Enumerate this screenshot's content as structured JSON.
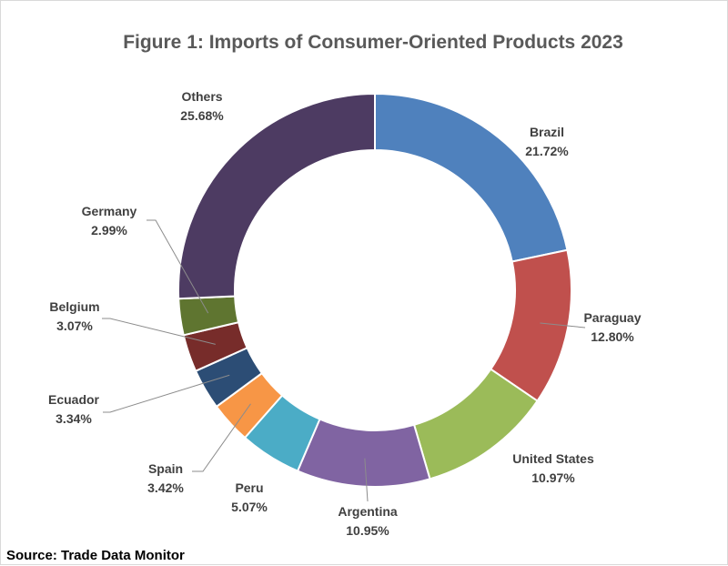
{
  "chart_data": {
    "type": "pie",
    "title": "Figure 1: Imports of Consumer-Oriented Products 2023",
    "source": "Source: Trade Data Monitor",
    "categories": [
      "Brazil",
      "Paraguay",
      "United States",
      "Argentina",
      "Peru",
      "Spain",
      "Ecuador",
      "Belgium",
      "Germany",
      "Others"
    ],
    "values": [
      21.72,
      12.8,
      10.97,
      10.95,
      5.07,
      3.42,
      3.34,
      3.07,
      2.99,
      25.68
    ],
    "value_labels": [
      "21.72%",
      "12.80%",
      "10.97%",
      "10.95%",
      "5.07%",
      "3.42%",
      "3.34%",
      "3.07%",
      "2.99%",
      "25.68%"
    ],
    "colors": [
      "#4f81bd",
      "#c0504d",
      "#9bbb59",
      "#8064a2",
      "#4bacc6",
      "#f79646",
      "#2c4d75",
      "#772c2a",
      "#5f7530",
      "#4d3b62"
    ],
    "donut": true
  }
}
